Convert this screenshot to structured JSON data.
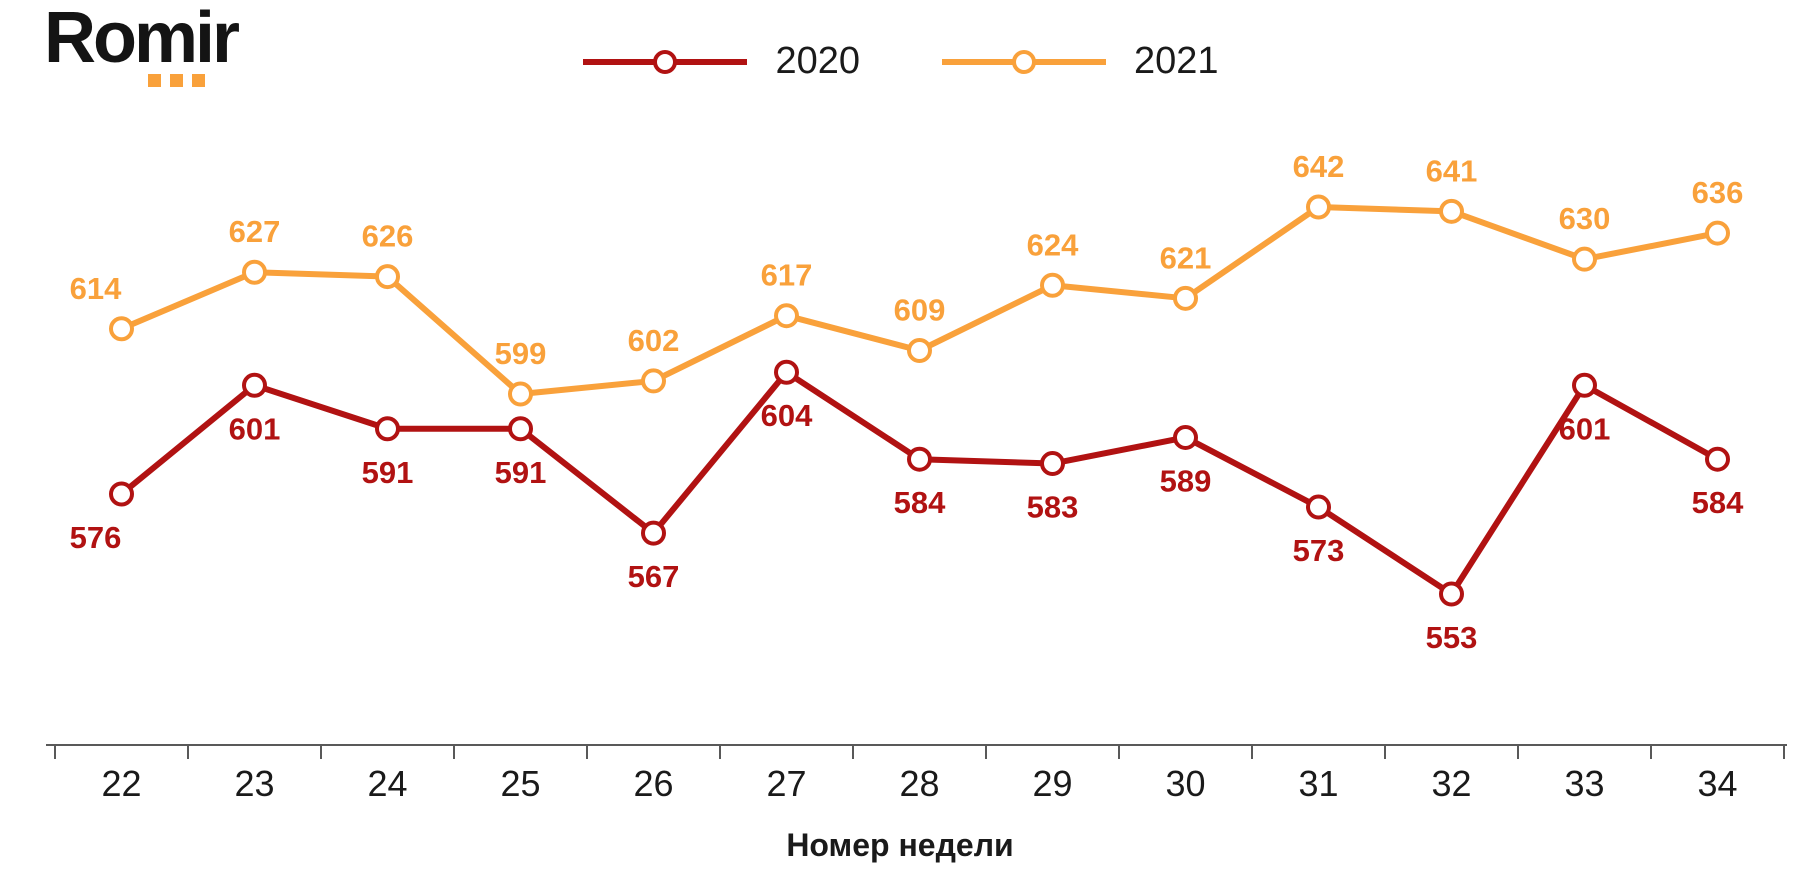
{
  "brand": {
    "name": "Romir",
    "accent": "#f9a13b"
  },
  "chart_data": {
    "type": "line",
    "title": "",
    "xlabel": "Номер недели",
    "ylabel": "",
    "categories": [
      "22",
      "23",
      "24",
      "25",
      "26",
      "27",
      "28",
      "29",
      "30",
      "31",
      "32",
      "33",
      "34"
    ],
    "series": [
      {
        "name": "2020",
        "color": "#b11212",
        "values": [
          576,
          601,
          591,
          591,
          567,
          604,
          584,
          583,
          589,
          573,
          553,
          601,
          584
        ],
        "label_position": "below"
      },
      {
        "name": "2021",
        "color": "#f9a13b",
        "values": [
          614,
          627,
          626,
          599,
          602,
          617,
          609,
          624,
          621,
          642,
          641,
          630,
          636
        ],
        "label_position": "above"
      }
    ],
    "legend_position": "top",
    "grid": false,
    "axis_color": "#595959",
    "marker": "circle-open",
    "ylim": [
      540,
      655
    ]
  }
}
